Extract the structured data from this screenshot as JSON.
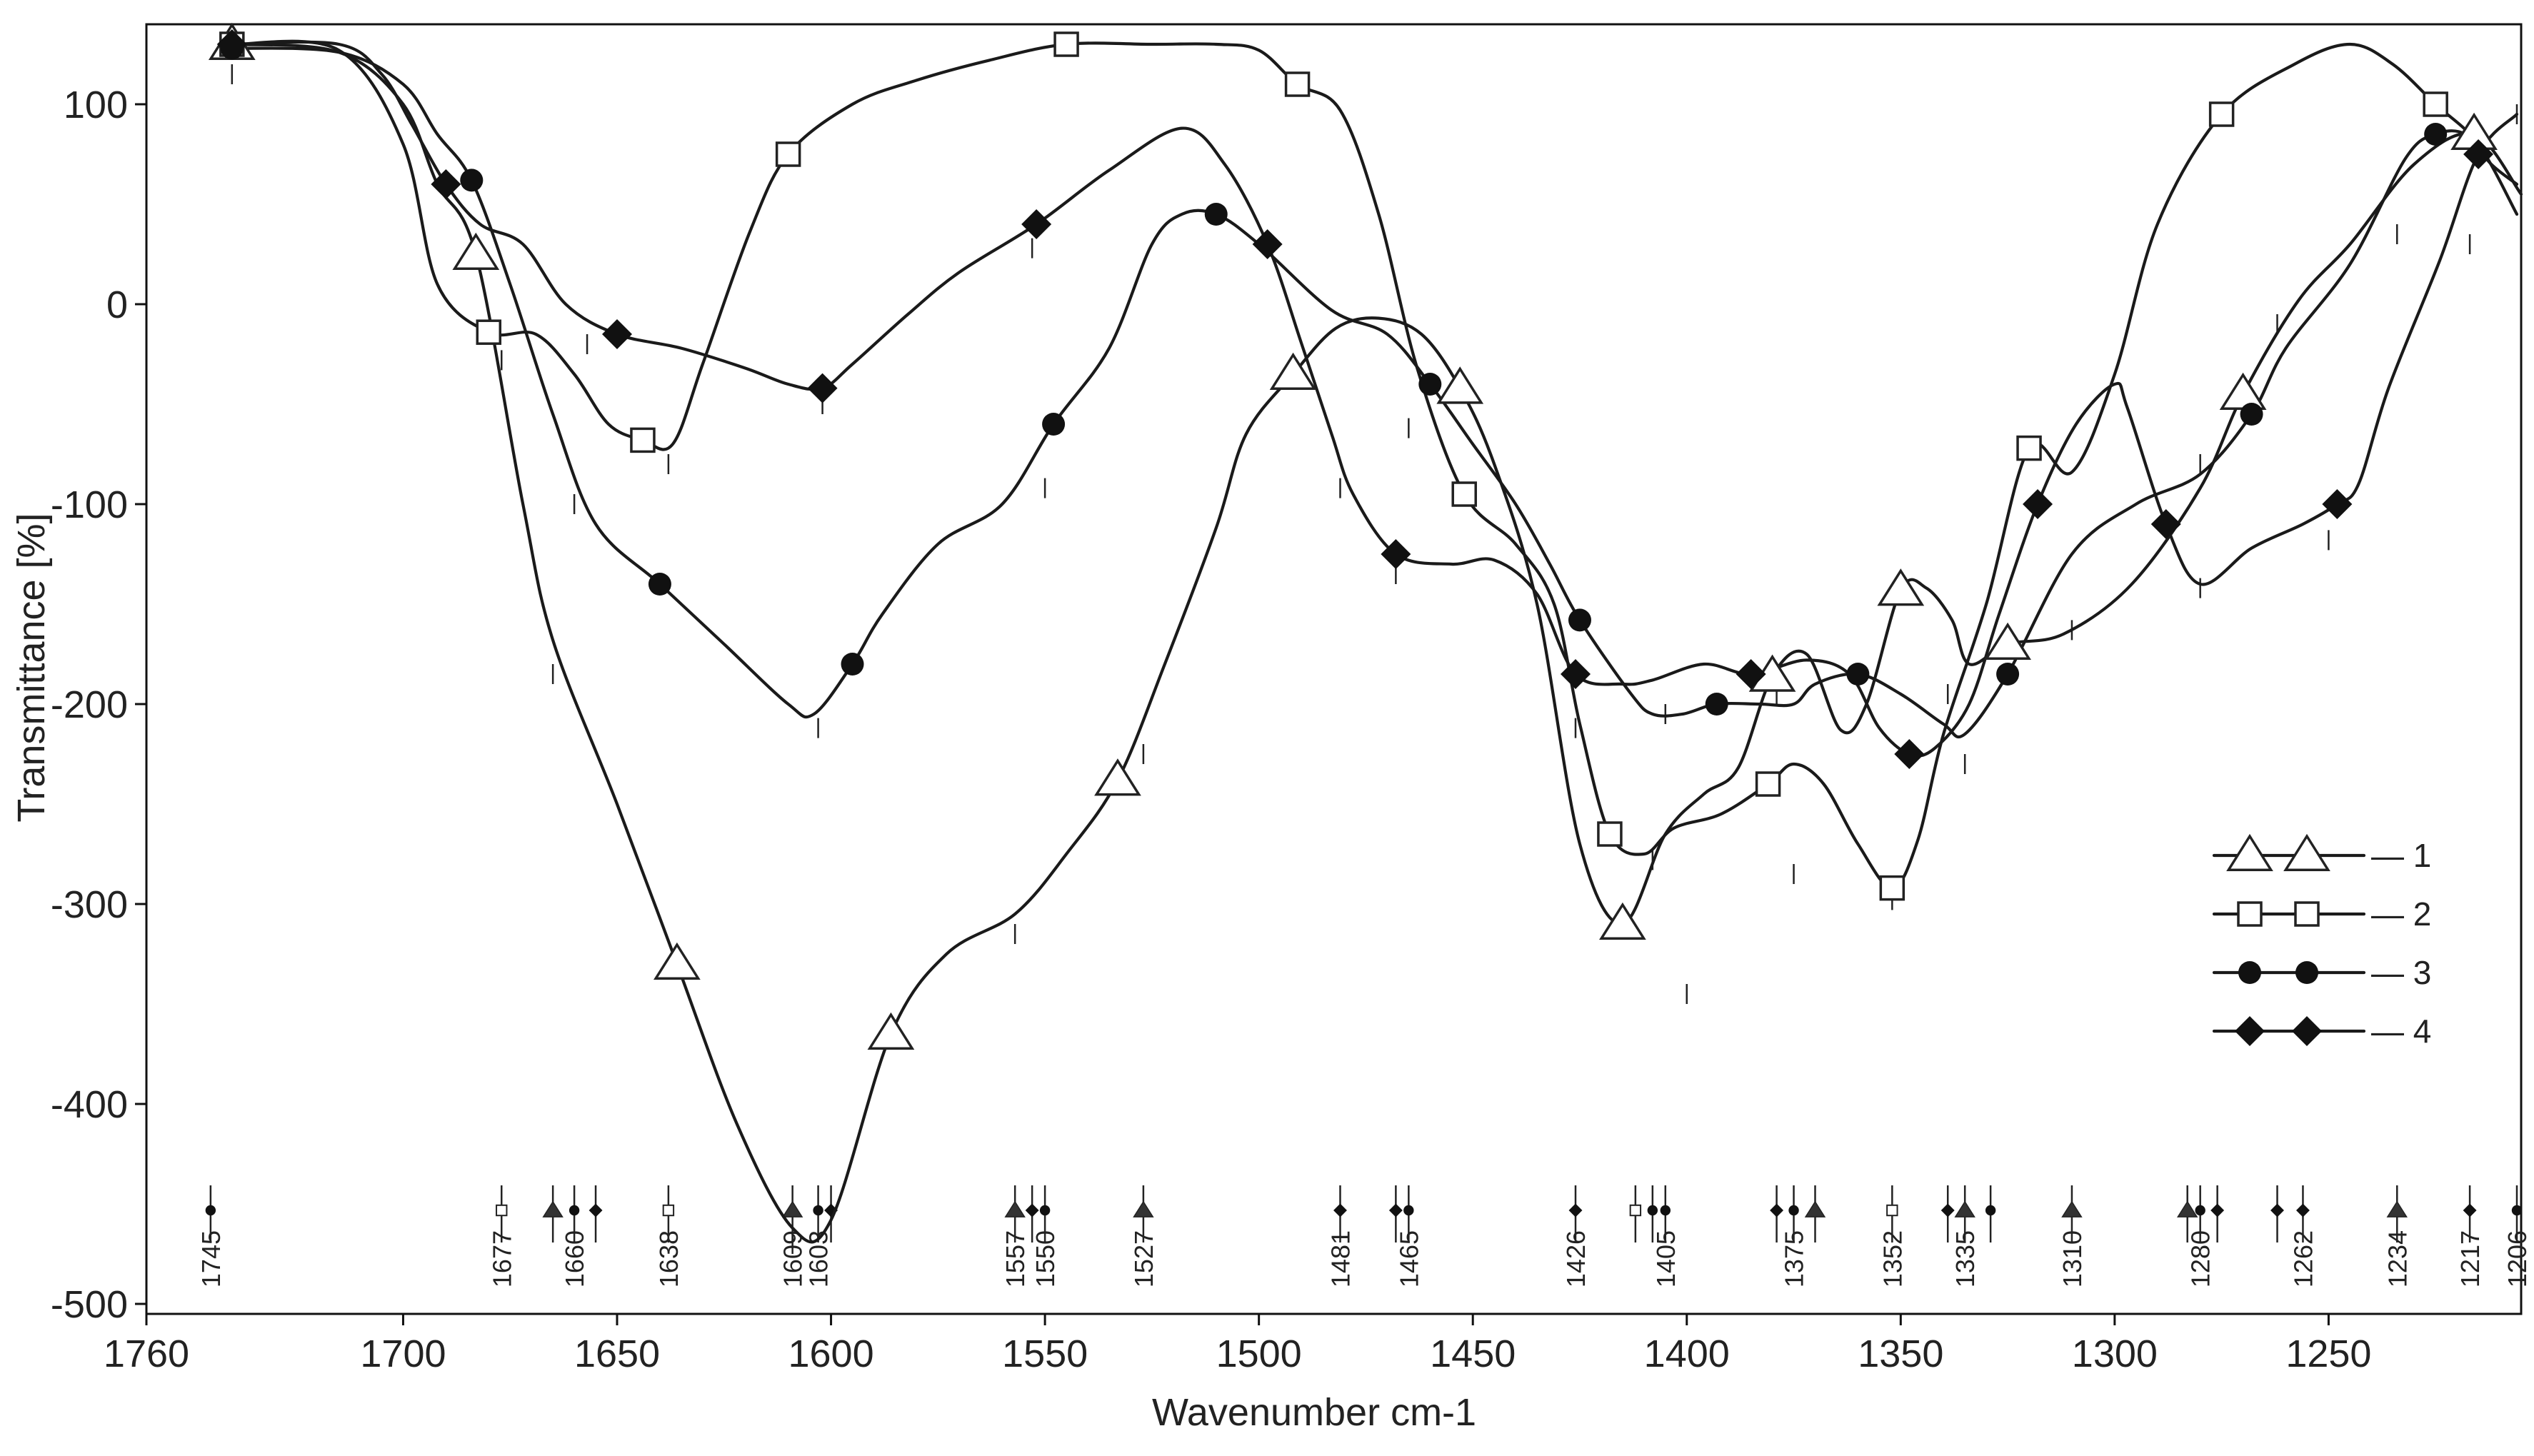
{
  "chart_data": {
    "type": "line",
    "xlabel": "Wavenumber cm-1",
    "ylabel": "Transmittance [%]",
    "xlim": [
      1760,
      1205
    ],
    "ylim": [
      -505,
      140
    ],
    "x_reversed": true,
    "grid": false,
    "legend_position": "right",
    "x_ticks": [
      1760,
      1700,
      1650,
      1600,
      1550,
      1500,
      1450,
      1400,
      1350,
      1300,
      1250
    ],
    "x_tick_labels": [
      "1760",
      "1700",
      "1650",
      "1600",
      "1550",
      "1500",
      "1450",
      "1400",
      "1350",
      "1300",
      "1250"
    ],
    "y_ticks": [
      100,
      0,
      -100,
      -200,
      -300,
      -400,
      -500
    ],
    "y_tick_labels": [
      "100",
      "0",
      "-100",
      "-200",
      "-300",
      "-400",
      "-500"
    ],
    "series": [
      {
        "name": "1",
        "marker": "triangle-open",
        "x": [
          1762,
          1740,
          1715,
          1700,
          1692,
          1683,
          1672,
          1665,
          1650,
          1636,
          1622,
          1609,
          1600,
          1586,
          1573,
          1557,
          1545,
          1533,
          1522,
          1510,
          1503,
          1492,
          1482,
          1472,
          1462,
          1453,
          1445,
          1435,
          1425,
          1415,
          1405,
          1396,
          1388,
          1380,
          1372,
          1364,
          1358,
          1350,
          1344,
          1338,
          1334,
          1325,
          1312,
          1296,
          1280,
          1270,
          1257,
          1245,
          1230,
          1216,
          1205
        ],
        "values": [
          130,
          130,
          126,
          100,
          60,
          25,
          -100,
          -168,
          -250,
          -330,
          -410,
          -462,
          -458,
          -365,
          -325,
          -305,
          -275,
          -238,
          -180,
          -112,
          -65,
          -35,
          -12,
          -7,
          -15,
          -42,
          -80,
          -150,
          -270,
          -310,
          -265,
          -245,
          -232,
          -186,
          -175,
          -213,
          -200,
          -143,
          -142,
          -158,
          -180,
          -170,
          -165,
          -140,
          -92,
          -45,
          2,
          30,
          70,
          85,
          55
        ]
      },
      {
        "name": "2",
        "marker": "square-open",
        "x": [
          1762,
          1740,
          1715,
          1700,
          1692,
          1680,
          1669,
          1660,
          1652,
          1644,
          1637,
          1630,
          1619,
          1610,
          1595,
          1580,
          1563,
          1545,
          1525,
          1510,
          1500,
          1491,
          1481,
          1472,
          1463,
          1452,
          1440,
          1431,
          1425,
          1418,
          1410,
          1403,
          1392,
          1381,
          1375,
          1368,
          1360,
          1352,
          1346,
          1340,
          1330,
          1320,
          1310,
          1300,
          1290,
          1275,
          1258,
          1245,
          1235,
          1225,
          1215,
          1206
        ],
        "values": [
          130,
          130,
          127,
          80,
          10,
          -14,
          -15,
          -35,
          -60,
          -68,
          -70,
          -30,
          36,
          75,
          100,
          112,
          122,
          130,
          130,
          130,
          127,
          110,
          97,
          45,
          -32,
          -95,
          -120,
          -150,
          -210,
          -265,
          -275,
          -262,
          -255,
          -240,
          -230,
          -240,
          -270,
          -292,
          -268,
          -215,
          -150,
          -72,
          -84,
          -35,
          40,
          95,
          120,
          130,
          120,
          100,
          80,
          45
        ]
      },
      {
        "name": "3",
        "marker": "circle-filled",
        "x": [
          1762,
          1740,
          1715,
          1700,
          1692,
          1684,
          1675,
          1665,
          1655,
          1640,
          1625,
          1610,
          1604,
          1595,
          1588,
          1575,
          1560,
          1548,
          1535,
          1525,
          1518,
          1510,
          1500,
          1483,
          1470,
          1460,
          1450,
          1440,
          1432,
          1425,
          1413,
          1408,
          1401,
          1393,
          1383,
          1375,
          1370,
          1360,
          1350,
          1340,
          1335,
          1325,
          1310,
          1295,
          1280,
          1268,
          1260,
          1245,
          1232,
          1225,
          1218,
          1212,
          1206
        ],
        "values": [
          130,
          128,
          126,
          110,
          85,
          62,
          10,
          -55,
          -110,
          -140,
          -170,
          -200,
          -205,
          -180,
          -155,
          -120,
          -100,
          -60,
          -22,
          30,
          45,
          45,
          30,
          -3,
          -15,
          -40,
          -70,
          -100,
          -130,
          -158,
          -195,
          -205,
          -205,
          -200,
          -200,
          -200,
          -190,
          -185,
          -195,
          -210,
          -215,
          -185,
          -125,
          -100,
          -85,
          -55,
          -22,
          20,
          73,
          85,
          85,
          70,
          60
        ]
      },
      {
        "name": "4",
        "marker": "diamond-filled",
        "x": [
          1762,
          1740,
          1715,
          1705,
          1698,
          1690,
          1682,
          1672,
          1662,
          1650,
          1635,
          1620,
          1610,
          1602,
          1595,
          1582,
          1570,
          1552,
          1535,
          1518,
          1508,
          1498,
          1490,
          1483,
          1478,
          1468,
          1455,
          1445,
          1435,
          1426,
          1415,
          1408,
          1396,
          1385,
          1372,
          1362,
          1355,
          1348,
          1342,
          1334,
          1327,
          1318,
          1309,
          1300,
          1297,
          1288,
          1280,
          1268,
          1256,
          1248,
          1243,
          1236,
          1224,
          1215,
          1206
        ],
        "values": [
          130,
          130,
          130,
          115,
          90,
          60,
          40,
          30,
          0,
          -15,
          -22,
          -32,
          -40,
          -42,
          -30,
          -5,
          16,
          40,
          67,
          88,
          70,
          30,
          -20,
          -65,
          -95,
          -125,
          -130,
          -128,
          -145,
          -185,
          -190,
          -188,
          -180,
          -185,
          -178,
          -185,
          -212,
          -225,
          -222,
          -200,
          -155,
          -100,
          -60,
          -40,
          -52,
          -110,
          -140,
          -122,
          -110,
          -100,
          -90,
          -42,
          22,
          75,
          95
        ]
      }
    ],
    "peak_markers": [
      {
        "x": 1745,
        "label": "1745",
        "symbol": "circle"
      },
      {
        "x": 1677,
        "label": "1677",
        "symbol": "square"
      },
      {
        "x": 1665,
        "label": "",
        "symbol": "triangle"
      },
      {
        "x": 1660,
        "label": "1660",
        "symbol": "circle"
      },
      {
        "x": 1655,
        "label": "",
        "symbol": "diamond"
      },
      {
        "x": 1638,
        "label": "1638",
        "symbol": "square"
      },
      {
        "x": 1609,
        "label": "1609",
        "symbol": "triangle"
      },
      {
        "x": 1603,
        "label": "1603",
        "symbol": "circle"
      },
      {
        "x": 1600,
        "label": "",
        "symbol": "diamond"
      },
      {
        "x": 1557,
        "label": "1557",
        "symbol": "triangle"
      },
      {
        "x": 1553,
        "label": "",
        "symbol": "diamond"
      },
      {
        "x": 1550,
        "label": "1550",
        "symbol": "circle"
      },
      {
        "x": 1527,
        "label": "1527",
        "symbol": "triangle"
      },
      {
        "x": 1481,
        "label": "1481",
        "symbol": "diamond"
      },
      {
        "x": 1468,
        "label": "",
        "symbol": "diamond"
      },
      {
        "x": 1465,
        "label": "1465",
        "symbol": "circle"
      },
      {
        "x": 1426,
        "label": "1426",
        "symbol": "diamond"
      },
      {
        "x": 1412,
        "label": "",
        "symbol": "square"
      },
      {
        "x": 1408,
        "label": "",
        "symbol": "circle"
      },
      {
        "x": 1405,
        "label": "1405",
        "symbol": "circle"
      },
      {
        "x": 1379,
        "label": "",
        "symbol": "diamond"
      },
      {
        "x": 1375,
        "label": "1375",
        "symbol": "circle"
      },
      {
        "x": 1370,
        "label": "",
        "symbol": "triangle"
      },
      {
        "x": 1352,
        "label": "1352",
        "symbol": "square"
      },
      {
        "x": 1339,
        "label": "",
        "symbol": "diamond"
      },
      {
        "x": 1335,
        "label": "1335",
        "symbol": "triangle"
      },
      {
        "x": 1329,
        "label": "",
        "symbol": "circle"
      },
      {
        "x": 1310,
        "label": "1310",
        "symbol": "triangle"
      },
      {
        "x": 1283,
        "label": "",
        "symbol": "triangle"
      },
      {
        "x": 1280,
        "label": "1280",
        "symbol": "circle"
      },
      {
        "x": 1276,
        "label": "",
        "symbol": "diamond"
      },
      {
        "x": 1262,
        "label": "",
        "symbol": "diamond"
      },
      {
        "x": 1256,
        "label": "1262",
        "symbol": "diamond"
      },
      {
        "x": 1234,
        "label": "1234",
        "symbol": "triangle"
      },
      {
        "x": 1217,
        "label": "1217",
        "symbol": "diamond"
      },
      {
        "x": 1206,
        "label": "1206",
        "symbol": "circle"
      }
    ],
    "peak_ticks": [
      {
        "x": 1740,
        "y": 115,
        "series": "1"
      },
      {
        "x": 1677,
        "y": -28,
        "series": "4"
      },
      {
        "x": 1660,
        "y": -100,
        "series": "3"
      },
      {
        "x": 1657,
        "y": -20,
        "series": "4"
      },
      {
        "x": 1665,
        "y": -185,
        "series": "1"
      },
      {
        "x": 1638,
        "y": -80,
        "series": "2"
      },
      {
        "x": 1602,
        "y": -50,
        "series": "4"
      },
      {
        "x": 1603,
        "y": -212,
        "series": "3"
      },
      {
        "x": 1609,
        "y": -470,
        "series": "1"
      },
      {
        "x": 1557,
        "y": -315,
        "series": "1"
      },
      {
        "x": 1550,
        "y": -92,
        "series": "3"
      },
      {
        "x": 1553,
        "y": 28,
        "series": "4"
      },
      {
        "x": 1527,
        "y": -225,
        "series": "1"
      },
      {
        "x": 1481,
        "y": -92,
        "series": "4"
      },
      {
        "x": 1468,
        "y": -135,
        "series": "4"
      },
      {
        "x": 1465,
        "y": -62,
        "series": "2"
      },
      {
        "x": 1426,
        "y": -212,
        "series": "2"
      },
      {
        "x": 1405,
        "y": -205,
        "series": "3"
      },
      {
        "x": 1408,
        "y": -278,
        "series": "2"
      },
      {
        "x": 1400,
        "y": -345,
        "series": "1"
      },
      {
        "x": 1379,
        "y": -195,
        "series": "4"
      },
      {
        "x": 1375,
        "y": -285,
        "series": "1"
      },
      {
        "x": 1352,
        "y": -298,
        "series": "2"
      },
      {
        "x": 1339,
        "y": -195,
        "series": "4"
      },
      {
        "x": 1335,
        "y": -230,
        "series": "4"
      },
      {
        "x": 1310,
        "y": -163,
        "series": "1"
      },
      {
        "x": 1280,
        "y": -142,
        "series": "3"
      },
      {
        "x": 1280,
        "y": -80,
        "series": "1"
      },
      {
        "x": 1262,
        "y": -10,
        "series": "1"
      },
      {
        "x": 1250,
        "y": -118,
        "series": "4"
      },
      {
        "x": 1234,
        "y": 35,
        "series": "1"
      },
      {
        "x": 1217,
        "y": 30,
        "series": "3"
      },
      {
        "x": 1206,
        "y": 95,
        "series": "2"
      }
    ],
    "legend": [
      {
        "label": "— 1",
        "marker": "triangle-open"
      },
      {
        "label": "— 2",
        "marker": "square-open"
      },
      {
        "label": "— 3",
        "marker": "circle-filled"
      },
      {
        "label": "— 4",
        "marker": "diamond-filled"
      }
    ]
  }
}
